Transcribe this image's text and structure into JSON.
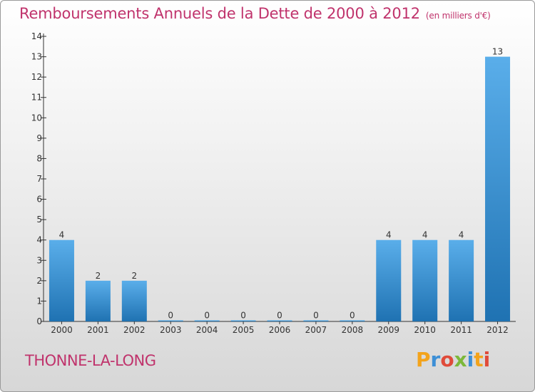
{
  "title": "Remboursements Annuels de la Dette de 2000 à 2012",
  "unit": "(en milliers d'€)",
  "commune": "THONNE-LA-LONG",
  "logo": {
    "p": "P",
    "r": "r",
    "o": "o",
    "x": "x",
    "i1": "i",
    "t": "t",
    "i2": "i"
  },
  "colors": {
    "bar_top": "#5aaeea",
    "bar_bottom": "#1f72b2",
    "title": "#c0336c"
  },
  "chart_data": {
    "type": "bar",
    "title": "Remboursements Annuels de la Dette de 2000 à 2012",
    "xlabel": "",
    "ylabel": "",
    "categories": [
      "2000",
      "2001",
      "2002",
      "2003",
      "2004",
      "2005",
      "2006",
      "2007",
      "2008",
      "2009",
      "2010",
      "2011",
      "2012"
    ],
    "values": [
      4,
      2,
      2,
      0,
      0,
      0,
      0,
      0,
      0,
      4,
      4,
      4,
      13
    ],
    "value_labels": [
      "4",
      "2",
      "2",
      "0",
      "0",
      "0",
      "0",
      "0",
      "0",
      "4",
      "4",
      "4",
      "13"
    ],
    "ylim": [
      0,
      14
    ],
    "yticks": [
      "0",
      "1",
      "2",
      "3",
      "4",
      "5",
      "6",
      "7",
      "8",
      "9",
      "10",
      "11",
      "12",
      "13",
      "14"
    ],
    "grid": false
  }
}
